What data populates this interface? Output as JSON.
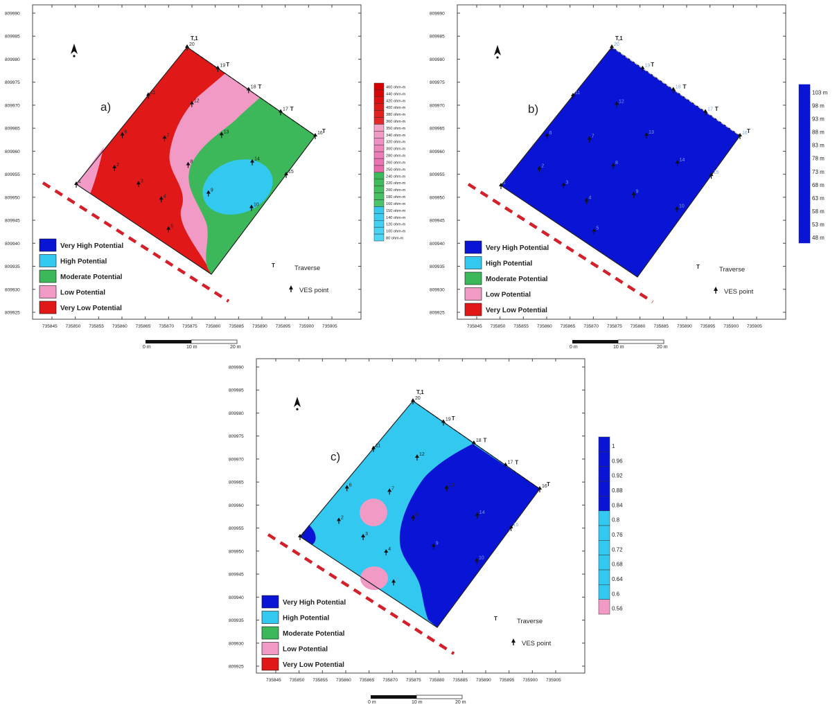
{
  "panels": [
    {
      "id": "a",
      "label": "a)",
      "y_ticks": [
        "809990",
        "809985",
        "809980",
        "809975",
        "809970",
        "809965",
        "809960",
        "809955",
        "809950",
        "809945",
        "809940",
        "809935",
        "809930",
        "809925"
      ],
      "x_ticks": [
        "735845",
        "735850",
        "735855",
        "735860",
        "735865",
        "735870",
        "735875",
        "735880",
        "735885",
        "735890",
        "735895",
        "735900",
        "735905"
      ],
      "colorbar": [
        "460 ohm-m",
        "440 ohm-m",
        "420 ohm-m",
        "400 ohm-m",
        "380 ohm-m",
        "360 ohm-m",
        "350 ohm-m",
        "340 ohm-m",
        "320 ohm-m",
        "300 ohm-m",
        "280 ohm-m",
        "260 ohm-m",
        "250 ohm-m",
        "240 ohm-m",
        "220 ohm-m",
        "200 ohm-m",
        "180 ohm-m",
        "160 ohm-m",
        "150 ohm-m",
        "140 ohm-m",
        "120 ohm-m",
        "100 ohm-m",
        "80 ohm-m"
      ],
      "scale": [
        "0 m",
        "10 m",
        "20 m"
      ]
    },
    {
      "id": "b",
      "label": "b)",
      "y_ticks": [
        "809990",
        "809985",
        "809980",
        "809975",
        "809970",
        "809965",
        "809960",
        "809955",
        "809950",
        "809945",
        "809940",
        "809935",
        "809930",
        "809925"
      ],
      "x_ticks": [
        "735845",
        "735850",
        "735855",
        "735860",
        "735865",
        "735870",
        "735875",
        "735880",
        "735885",
        "735890",
        "735895",
        "735900",
        "735905"
      ],
      "colorbar": [
        "103 m",
        "98 m",
        "93 m",
        "88 m",
        "83 m",
        "78 m",
        "73 m",
        "68 m",
        "63 m",
        "58 m",
        "53 m",
        "48 m"
      ],
      "scale": [
        "0 m",
        "10 m",
        "20 m"
      ]
    },
    {
      "id": "c",
      "label": "c)",
      "y_ticks": [
        "809990",
        "809985",
        "809980",
        "809975",
        "809970",
        "809965",
        "809960",
        "809955",
        "809950",
        "809945",
        "809940",
        "809935",
        "809930",
        "809925"
      ],
      "x_ticks": [
        "735845",
        "735850",
        "735855",
        "735860",
        "735865",
        "735870",
        "735875",
        "735880",
        "735885",
        "735890",
        "735895",
        "735900",
        "735905"
      ],
      "colorbar": [
        "1",
        "0.96",
        "0.92",
        "0.88",
        "0.84",
        "0.8",
        "0.76",
        "0.72",
        "0.68",
        "0.64",
        "0.6",
        "0.56"
      ],
      "scale": [
        "0 m",
        "10 m",
        "20 m"
      ]
    }
  ],
  "legend": [
    {
      "label": "Very High Potential",
      "color": "#0a14d4"
    },
    {
      "label": "High Potential",
      "color": "#33c8f0"
    },
    {
      "label": "Moderate Potential",
      "color": "#3cb85a"
    },
    {
      "label": "Low Potential",
      "color": "#f29ac6"
    },
    {
      "label": "Very Low Potential",
      "color": "#e01818"
    }
  ],
  "traverse_label": "Traverse",
  "ves_label": "VES point",
  "traverse_symbol": "T",
  "traverse_tags": [
    "T,1",
    "T",
    "T",
    "T",
    "T"
  ],
  "ves_points": [
    "1",
    "2",
    "3",
    "4",
    "5",
    "6",
    "7",
    "8",
    "9",
    "10",
    "11",
    "12",
    "13",
    "14",
    "15",
    "16",
    "17",
    "18",
    "19",
    "20"
  ],
  "colors": {
    "very_high": "#0a14d4",
    "high": "#33c8f0",
    "moderate": "#3cb85a",
    "low": "#f29ac6",
    "very_low": "#e01818",
    "dashed_line": "#d4202a"
  }
}
